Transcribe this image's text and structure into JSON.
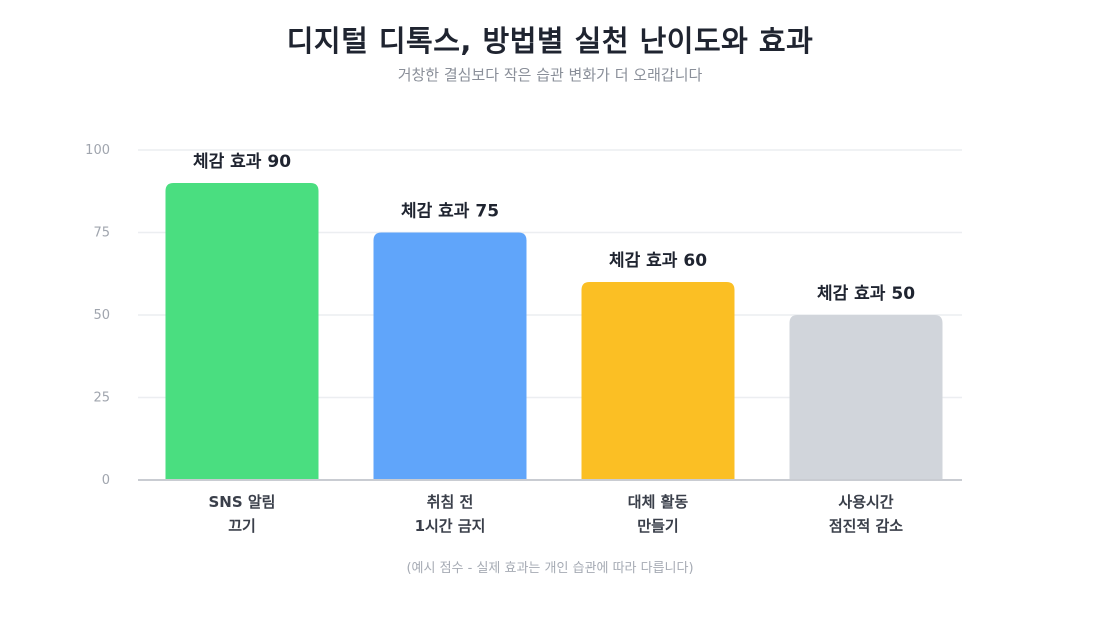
{
  "header": {
    "title": "디지털 디톡스, 방법별 실천 난이도와 효과",
    "subtitle": "거창한 결심보다 작은 습관 변화가 더 오래갑니다"
  },
  "footer": {
    "note": "(예시 점수 - 실제 효과는 개인 습관에 따라 다릅니다)"
  },
  "chart_data": {
    "type": "bar",
    "categories": [
      [
        "SNS 알림",
        "끄기"
      ],
      [
        "취침 전",
        "1시간 금지"
      ],
      [
        "대체 활동",
        "만들기"
      ],
      [
        "사용시간",
        "점진적 감소"
      ]
    ],
    "values": [
      90,
      75,
      60,
      50
    ],
    "data_labels": [
      "체감 효과 90",
      "체감 효과 75",
      "체감 효과 60",
      "체감 효과 50"
    ],
    "colors": [
      "#4ade80",
      "#60a5fa",
      "#fbbf24",
      "#d1d5db"
    ],
    "ylim": [
      0,
      100
    ],
    "yticks": [
      0,
      25,
      50,
      75,
      100
    ],
    "grid": true,
    "legend": "none"
  }
}
